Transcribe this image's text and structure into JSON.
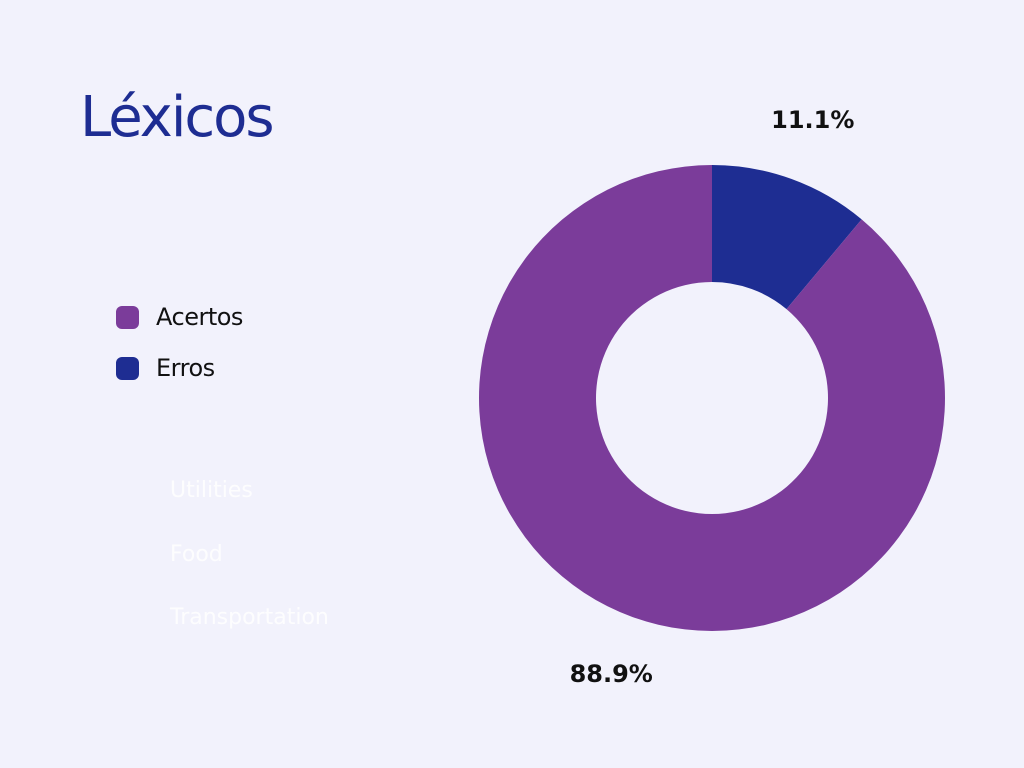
{
  "title": "Léxicos",
  "legend": [
    {
      "label": "Acertos",
      "color": "#7b3c9a"
    },
    {
      "label": "Erros",
      "color": "#1e2d92"
    }
  ],
  "ghost_labels": [
    "Utilities",
    "Food",
    "Transportation"
  ],
  "chart_data": {
    "type": "pie",
    "donut": true,
    "categories": [
      "Acertos",
      "Erros"
    ],
    "values": [
      88.9,
      11.1
    ],
    "value_labels": [
      "88.9%",
      "11.1%"
    ],
    "colors": [
      "#7b3c9a",
      "#1e2d92"
    ],
    "title": "Léxicos",
    "legend_position": "left"
  }
}
